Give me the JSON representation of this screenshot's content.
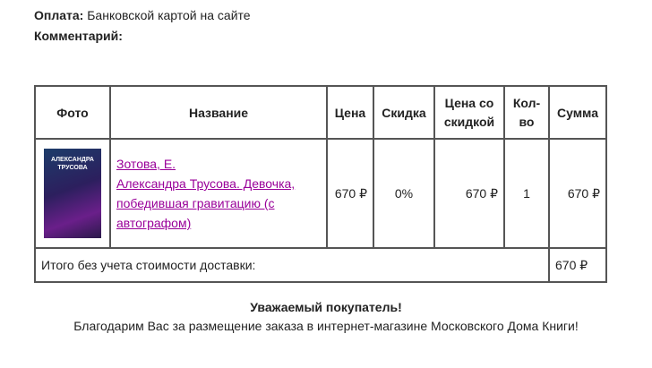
{
  "payment": {
    "label": "Оплата:",
    "value": "Банковской картой на сайте"
  },
  "comment": {
    "label": "Комментарий:"
  },
  "table": {
    "headers": [
      "Фото",
      "Название",
      "Цена",
      "Скидка",
      "Цена со скидкой",
      "Кол-во",
      "Сумма"
    ],
    "rows": [
      {
        "cover_text": "АЛЕКСАНДРА ТРУСОВА",
        "author": "Зотова, Е.",
        "title": "Александра Трусова. Девочка, победившая гравитацию (с автографом)",
        "price": "670 ₽",
        "discount": "0%",
        "discounted_price": "670 ₽",
        "qty": "1",
        "sum": "670 ₽"
      }
    ],
    "total_label": "Итого без учета стоимости доставки:",
    "total": "670 ₽"
  },
  "footer": {
    "greeting": "Уважаемый покупатель!",
    "thanks": "Благодарим Вас за размещение заказа в интернет-магазине Московского Дома Книги!"
  },
  "colors": {
    "link": "#990099",
    "border": "#555555"
  }
}
